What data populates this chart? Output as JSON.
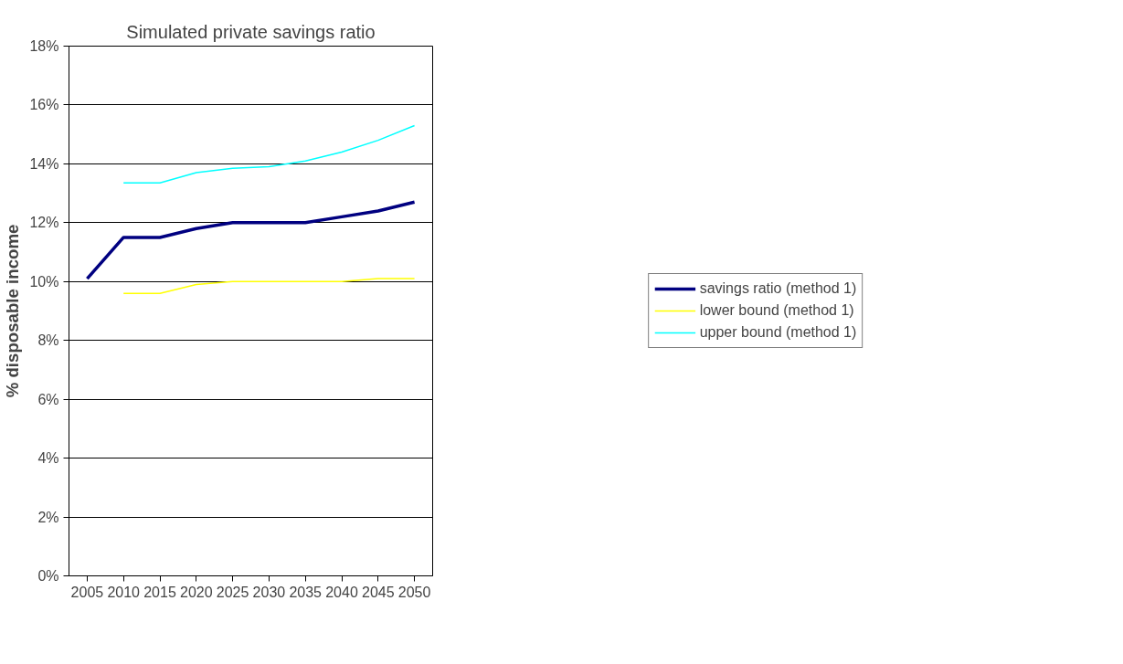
{
  "chart_data": {
    "type": "line",
    "title": "Simulated private savings ratio",
    "ylabel": "% disposable income",
    "categories": [
      "2005",
      "2010",
      "2015",
      "2020",
      "2025",
      "2030",
      "2035",
      "2040",
      "2045",
      "2050"
    ],
    "ylim": [
      0,
      18
    ],
    "yticks": [
      {
        "value": 0,
        "label": "0%"
      },
      {
        "value": 2,
        "label": "2%"
      },
      {
        "value": 4,
        "label": "4%"
      },
      {
        "value": 6,
        "label": "6%"
      },
      {
        "value": 8,
        "label": "8%"
      },
      {
        "value": 10,
        "label": "10%"
      },
      {
        "value": 12,
        "label": "12%"
      },
      {
        "value": 14,
        "label": "14%"
      },
      {
        "value": 16,
        "label": "16%"
      },
      {
        "value": 18,
        "label": "18%"
      }
    ],
    "grid": "y",
    "legend": "right",
    "marker": "none",
    "series": [
      {
        "name": "savings ratio (method 1)",
        "color": "#000080",
        "values": [
          10.1,
          11.5,
          11.5,
          11.8,
          12.0,
          12.0,
          12.0,
          12.2,
          12.4,
          12.7
        ]
      },
      {
        "name": "lower bound (method 1)",
        "color": "#ffff00",
        "values": [
          null,
          9.6,
          9.6,
          9.9,
          10.0,
          10.0,
          10.0,
          10.0,
          10.1,
          10.1
        ]
      },
      {
        "name": "upper bound (method 1)",
        "color": "#00ffff",
        "values": [
          null,
          13.35,
          13.35,
          13.7,
          13.85,
          13.9,
          14.1,
          14.4,
          14.8,
          15.3
        ]
      }
    ]
  }
}
